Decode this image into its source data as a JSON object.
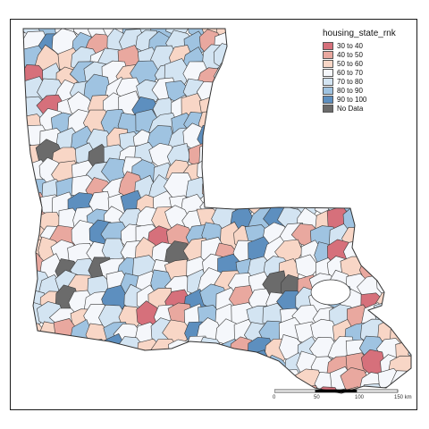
{
  "legend": {
    "title": "housing_state_rnk",
    "items": [
      {
        "label": "30 to 40",
        "color": "#d6707b"
      },
      {
        "label": "40 to 50",
        "color": "#e9a89f"
      },
      {
        "label": "50 to 60",
        "color": "#f8d6c6"
      },
      {
        "label": "60 to 70",
        "color": "#f5f7fb"
      },
      {
        "label": "70 to 80",
        "color": "#d3e4f2"
      },
      {
        "label": "80 to 90",
        "color": "#9fc3e1"
      },
      {
        "label": "90 to 100",
        "color": "#5d8fbf"
      },
      {
        "label": "No Data",
        "color": "#6b6b6b"
      }
    ]
  },
  "scale": {
    "labels": [
      "0",
      "50",
      "100",
      "150 km"
    ]
  },
  "zones": [
    {
      "v": "50 to 60"
    },
    {
      "v": "40 to 50"
    },
    {
      "v": "60 to 70"
    },
    {
      "v": "70 to 80"
    },
    {
      "v": "80 to 90"
    },
    {
      "v": "No Data"
    },
    {
      "v": "90 to 100"
    },
    {
      "v": "30 to 40"
    }
  ]
}
